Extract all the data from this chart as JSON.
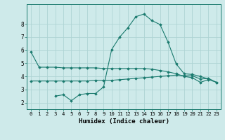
{
  "xlabel": "Humidex (Indice chaleur)",
  "bg_color": "#ceeaea",
  "line_color": "#1a7a6e",
  "grid_color": "#aed4d4",
  "x_values": [
    0,
    1,
    2,
    3,
    4,
    5,
    6,
    7,
    8,
    9,
    10,
    11,
    12,
    13,
    14,
    15,
    16,
    17,
    18,
    19,
    20,
    21,
    22,
    23
  ],
  "series1": [
    5.85,
    4.7,
    4.7,
    4.7,
    4.65,
    4.65,
    4.65,
    4.65,
    4.65,
    4.6,
    4.6,
    4.6,
    4.6,
    4.6,
    4.6,
    4.55,
    4.45,
    4.35,
    4.2,
    4.0,
    3.9,
    3.55,
    3.75,
    3.55
  ],
  "series2": [
    3.65,
    3.65,
    3.65,
    3.65,
    3.65,
    3.65,
    3.65,
    3.65,
    3.7,
    3.7,
    3.7,
    3.75,
    3.8,
    3.85,
    3.9,
    3.95,
    4.0,
    4.05,
    4.1,
    4.05,
    4.05,
    3.8,
    3.85,
    3.55
  ],
  "series3": [
    null,
    null,
    null,
    2.5,
    2.6,
    2.15,
    2.6,
    2.7,
    2.7,
    3.2,
    6.05,
    7.0,
    7.7,
    8.55,
    8.75,
    8.25,
    7.95,
    6.6,
    4.95,
    4.2,
    4.15,
    4.0,
    3.8,
    null
  ],
  "ylim": [
    1.5,
    9.5
  ],
  "xlim": [
    -0.5,
    23.5
  ],
  "yticks": [
    2,
    3,
    4,
    5,
    6,
    7,
    8
  ],
  "xticks": [
    0,
    1,
    2,
    3,
    4,
    5,
    6,
    7,
    8,
    9,
    10,
    11,
    12,
    13,
    14,
    15,
    16,
    17,
    18,
    19,
    20,
    21,
    22,
    23
  ],
  "xtick_labels": [
    "0",
    "1",
    "2",
    "3",
    "4",
    "5",
    "6",
    "7",
    "8",
    "9",
    "10",
    "11",
    "12",
    "13",
    "14",
    "15",
    "16",
    "17",
    "18",
    "19",
    "20",
    "21",
    "22",
    "23"
  ]
}
